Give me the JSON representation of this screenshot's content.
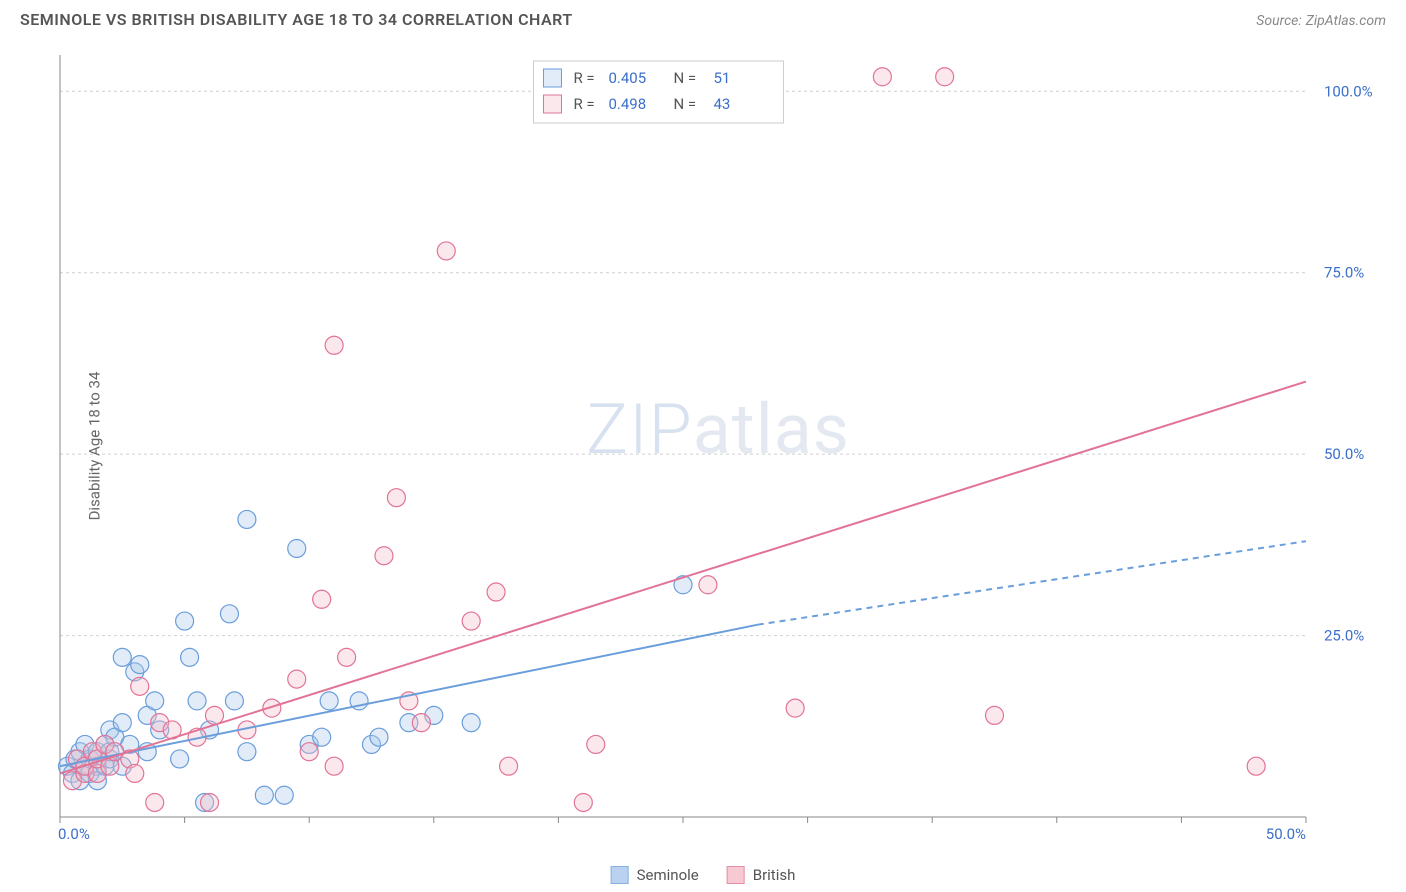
{
  "title": "SEMINOLE VS BRITISH DISABILITY AGE 18 TO 34 CORRELATION CHART",
  "source_label": "Source:",
  "source_name": "ZipAtlas.com",
  "ylabel": "Disability Age 18 to 34",
  "watermark_a": "ZIP",
  "watermark_b": "atlas",
  "chart": {
    "type": "scatter",
    "background_color": "#ffffff",
    "grid_color": "#d0d0d0",
    "axis_color": "#888888",
    "tick_color": "#888888",
    "label_color": "#3b6fc9",
    "xlim": [
      0,
      50
    ],
    "ylim": [
      0,
      105
    ],
    "xticks": [
      0,
      5,
      10,
      15,
      20,
      25,
      30,
      35,
      40,
      45,
      50
    ],
    "xtick_labels": {
      "0": "0.0%",
      "50": "50.0%"
    },
    "yticks": [
      25,
      50,
      75,
      100
    ],
    "ytick_labels": {
      "25": "25.0%",
      "50": "50.0%",
      "75": "75.0%",
      "100": "100.0%"
    },
    "marker_radius": 9,
    "series": [
      {
        "name": "Seminole",
        "stroke": "#6a9edb",
        "fill": "#a9c8ec",
        "R": "0.405",
        "N": "51",
        "trend": {
          "x1": 0,
          "y1": 7,
          "x2": 28,
          "y2": 26.5,
          "dash_x2": 50,
          "dash_y2": 38
        },
        "points": [
          [
            0.3,
            7
          ],
          [
            0.5,
            6
          ],
          [
            0.6,
            8
          ],
          [
            0.8,
            5
          ],
          [
            0.8,
            9
          ],
          [
            1.0,
            7
          ],
          [
            1.0,
            10
          ],
          [
            1.2,
            6
          ],
          [
            1.2,
            8
          ],
          [
            1.5,
            9
          ],
          [
            1.5,
            7
          ],
          [
            1.5,
            5
          ],
          [
            1.8,
            10
          ],
          [
            1.8,
            7
          ],
          [
            2.0,
            12
          ],
          [
            2.0,
            8
          ],
          [
            2.0,
            9
          ],
          [
            2.2,
            11
          ],
          [
            2.5,
            7
          ],
          [
            2.5,
            13
          ],
          [
            2.5,
            22
          ],
          [
            2.8,
            10
          ],
          [
            3.0,
            20
          ],
          [
            3.2,
            21
          ],
          [
            3.5,
            9
          ],
          [
            3.5,
            14
          ],
          [
            3.8,
            16
          ],
          [
            4.0,
            12
          ],
          [
            4.8,
            8
          ],
          [
            5.0,
            27
          ],
          [
            5.2,
            22
          ],
          [
            5.5,
            16
          ],
          [
            5.8,
            2
          ],
          [
            6.0,
            12
          ],
          [
            6.8,
            28
          ],
          [
            7.0,
            16
          ],
          [
            7.5,
            9
          ],
          [
            7.5,
            41
          ],
          [
            8.2,
            3
          ],
          [
            9.0,
            3
          ],
          [
            9.5,
            37
          ],
          [
            10.0,
            10
          ],
          [
            10.5,
            11
          ],
          [
            10.8,
            16
          ],
          [
            12.0,
            16
          ],
          [
            12.5,
            10
          ],
          [
            12.8,
            11
          ],
          [
            14.0,
            13
          ],
          [
            15.0,
            14
          ],
          [
            16.5,
            13
          ],
          [
            25.0,
            32
          ]
        ]
      },
      {
        "name": "British",
        "stroke": "#e27396",
        "fill": "#f4bcc9",
        "R": "0.498",
        "N": "43",
        "trend": {
          "x1": 0,
          "y1": 6,
          "x2": 50,
          "y2": 60
        },
        "points": [
          [
            0.5,
            5
          ],
          [
            0.7,
            8
          ],
          [
            1,
            6
          ],
          [
            1,
            7
          ],
          [
            1.3,
            9
          ],
          [
            1.5,
            6
          ],
          [
            1.5,
            8
          ],
          [
            1.8,
            10
          ],
          [
            2,
            7
          ],
          [
            2.2,
            9
          ],
          [
            2.8,
            8
          ],
          [
            3,
            6
          ],
          [
            3.2,
            18
          ],
          [
            3.8,
            2
          ],
          [
            4.0,
            13
          ],
          [
            4.5,
            12
          ],
          [
            5.5,
            11
          ],
          [
            6.0,
            2
          ],
          [
            6.2,
            14
          ],
          [
            7.5,
            12
          ],
          [
            8.5,
            15
          ],
          [
            9.5,
            19
          ],
          [
            10.0,
            9
          ],
          [
            10.5,
            30
          ],
          [
            11.0,
            7
          ],
          [
            11.0,
            65
          ],
          [
            11.5,
            22
          ],
          [
            13.0,
            36
          ],
          [
            13.5,
            44
          ],
          [
            14.0,
            16
          ],
          [
            14.5,
            13
          ],
          [
            15.5,
            78
          ],
          [
            16.5,
            27
          ],
          [
            17.5,
            31
          ],
          [
            18.0,
            7
          ],
          [
            21.0,
            2
          ],
          [
            21.5,
            10
          ],
          [
            26.0,
            32
          ],
          [
            29.5,
            15
          ],
          [
            33.0,
            102
          ],
          [
            35.5,
            102
          ],
          [
            37.5,
            14
          ],
          [
            48.0,
            7
          ]
        ]
      }
    ],
    "stats_legend": {
      "R_label": "R =",
      "N_label": "N ="
    },
    "bottom_legend_labels": [
      "Seminole",
      "British"
    ]
  }
}
